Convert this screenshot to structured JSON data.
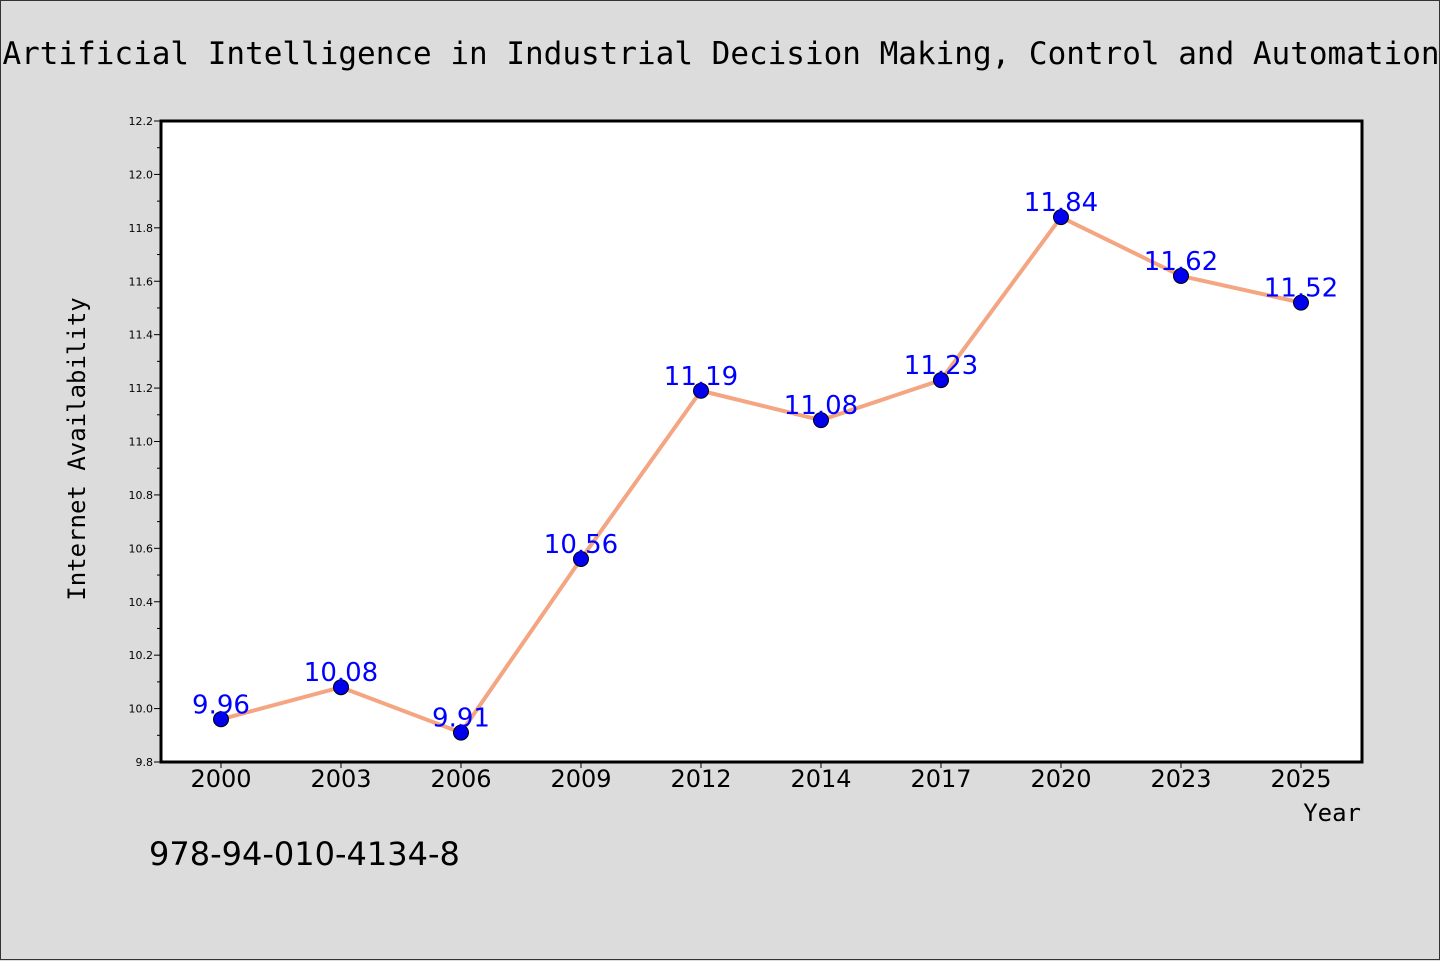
{
  "chart_data": {
    "type": "line",
    "title": "Artificial Intelligence in Industrial Decision Making, Control and Automation",
    "xlabel": "Year",
    "ylabel": "Internet Availability",
    "categories": [
      "2000",
      "2003",
      "2006",
      "2009",
      "2012",
      "2014",
      "2017",
      "2020",
      "2023",
      "2025"
    ],
    "series": [
      {
        "values": [
          9.96,
          10.08,
          9.91,
          10.56,
          11.19,
          11.08,
          11.23,
          11.84,
          11.62,
          11.52
        ],
        "data_labels": [
          "9.96",
          "10.08",
          "9.91",
          "10.56",
          "11.19",
          "11.08",
          "11.23",
          "11.84",
          "11.62",
          "11.52"
        ]
      }
    ],
    "ylim": [
      9.8,
      12.2
    ],
    "yticks": [
      "9.8",
      "10.0",
      "10.2",
      "10.4",
      "10.6",
      "10.8",
      "11.0",
      "11.2",
      "11.4",
      "11.6",
      "11.8",
      "12.0",
      "12.2"
    ],
    "grid": false,
    "legend": "none",
    "colors": {
      "line": "#f4a582",
      "marker": "#0000ee",
      "data_label": "#0000ff",
      "background": "#dcdcdc",
      "plot_area": "#ffffff"
    }
  },
  "footer": {
    "isbn": "978-94-010-4134-8"
  }
}
